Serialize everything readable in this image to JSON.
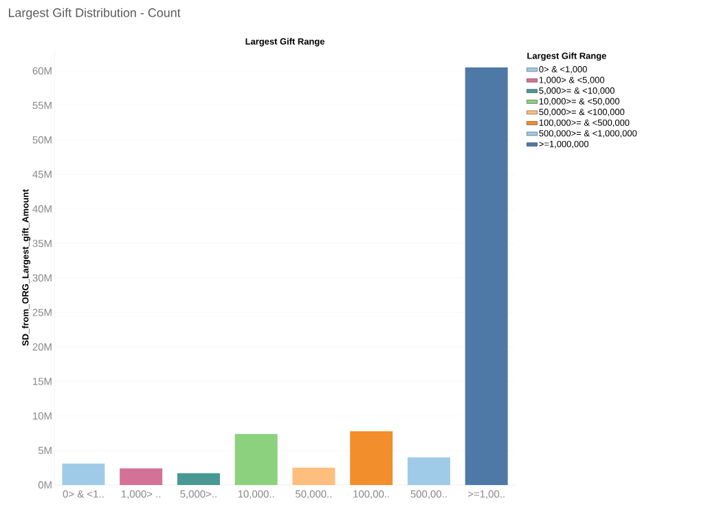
{
  "chart_data": {
    "type": "bar",
    "title": "Largest Gift Distribution - Count",
    "xlabel": "Largest Gift Range",
    "ylabel": "SD_from_ORG_Largest_gift_Amount",
    "legend_title": "Largest Gift Range",
    "categories": [
      "0> & <1..",
      "1,000> ..",
      "5,000>..",
      "10,000..",
      "50,000..",
      "100,00..",
      "500,00..",
      ">=1,00.."
    ],
    "series": [
      {
        "name": "0> & <1,000",
        "color": "#a0cbe8",
        "values": [
          3100000,
          null,
          null,
          null,
          null,
          null,
          null,
          null
        ]
      },
      {
        "name": "1,000> & <5,000",
        "color": "#d37295",
        "values": [
          null,
          2400000,
          null,
          null,
          null,
          null,
          null,
          null
        ]
      },
      {
        "name": "5,000>= & <10,000",
        "color": "#499894",
        "values": [
          null,
          null,
          1700000,
          null,
          null,
          null,
          null,
          null
        ]
      },
      {
        "name": "10,000>= & <50,000",
        "color": "#8cd17d",
        "values": [
          null,
          null,
          null,
          7400000,
          null,
          null,
          null,
          null
        ]
      },
      {
        "name": "50,000>= & <100,000",
        "color": "#ffbe7d",
        "values": [
          null,
          null,
          null,
          null,
          2500000,
          null,
          null,
          null
        ]
      },
      {
        "name": "100,000>= & <500,000",
        "color": "#f28e2b",
        "values": [
          null,
          null,
          null,
          null,
          null,
          7800000,
          null,
          null
        ]
      },
      {
        "name": "500,000>= & <1,000,000",
        "color": "#a0cbe8",
        "values": [
          null,
          null,
          null,
          null,
          null,
          null,
          4000000,
          null
        ]
      },
      {
        "name": ">=1,000,000",
        "color": "#4e79a7",
        "values": [
          null,
          null,
          null,
          null,
          null,
          null,
          null,
          60500000
        ]
      }
    ],
    "ylim": [
      0,
      63000000
    ],
    "yticks": [
      {
        "value": 0,
        "label": "0M"
      },
      {
        "value": 5000000,
        "label": "5M"
      },
      {
        "value": 10000000,
        "label": "10M"
      },
      {
        "value": 15000000,
        "label": "15M"
      },
      {
        "value": 20000000,
        "label": "20M"
      },
      {
        "value": 25000000,
        "label": "25M"
      },
      {
        "value": 30000000,
        "label": "30M"
      },
      {
        "value": 35000000,
        "label": "35M"
      },
      {
        "value": 40000000,
        "label": "40M"
      },
      {
        "value": 45000000,
        "label": "45M"
      },
      {
        "value": 50000000,
        "label": "50M"
      },
      {
        "value": 55000000,
        "label": "55M"
      },
      {
        "value": 60000000,
        "label": "60M"
      }
    ],
    "grid": "y",
    "legend": "right"
  }
}
